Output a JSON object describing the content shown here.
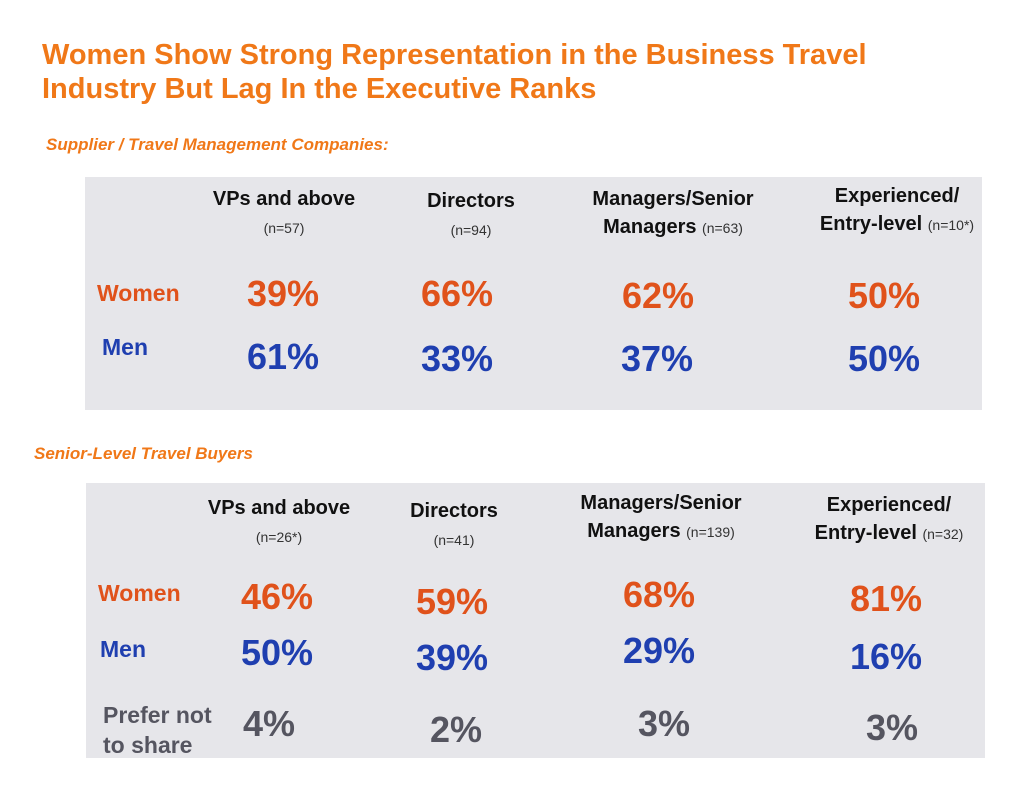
{
  "title_line1": "Women Show Strong Representation in the Business Travel",
  "title_line2": "Industry But Lag In the Executive Ranks",
  "colors": {
    "title": "#f07818",
    "women": "#e0521b",
    "men": "#1f3fb0",
    "prefer_not": "#555560",
    "panel": "#e6e6ea"
  },
  "suppliers": {
    "heading": "Supplier / Travel Management Companies:",
    "columns": [
      {
        "label": "VPs and above",
        "label2": "",
        "n": "(n=57)"
      },
      {
        "label": "Directors",
        "label2": "",
        "n": "(n=94)"
      },
      {
        "label": "Managers/Senior",
        "label2": "Managers",
        "n": "(n=63)"
      },
      {
        "label": "Experienced/",
        "label2": "Entry-level",
        "n": "(n=10*)"
      }
    ],
    "rows": [
      {
        "label": "Women",
        "values": [
          "39%",
          "66%",
          "62%",
          "50%"
        ]
      },
      {
        "label": "Men",
        "values": [
          "61%",
          "33%",
          "37%",
          "50%"
        ]
      }
    ]
  },
  "buyers": {
    "heading": "Senior-Level Travel Buyers",
    "columns": [
      {
        "label": "VPs and above",
        "label2": "",
        "n": "(n=26*)"
      },
      {
        "label": "Directors",
        "label2": "",
        "n": "(n=41)"
      },
      {
        "label": "Managers/Senior",
        "label2": "Managers",
        "n": "(n=139)"
      },
      {
        "label": "Experienced/",
        "label2": "Entry-level",
        "n": "(n=32)"
      }
    ],
    "rows": [
      {
        "label": "Women",
        "values": [
          "46%",
          "59%",
          "68%",
          "81%"
        ]
      },
      {
        "label": "Men",
        "values": [
          "50%",
          "39%",
          "29%",
          "16%"
        ]
      },
      {
        "label": "Prefer not",
        "label2": "to share",
        "values": [
          "4%",
          "2%",
          "3%",
          "3%"
        ]
      }
    ]
  }
}
